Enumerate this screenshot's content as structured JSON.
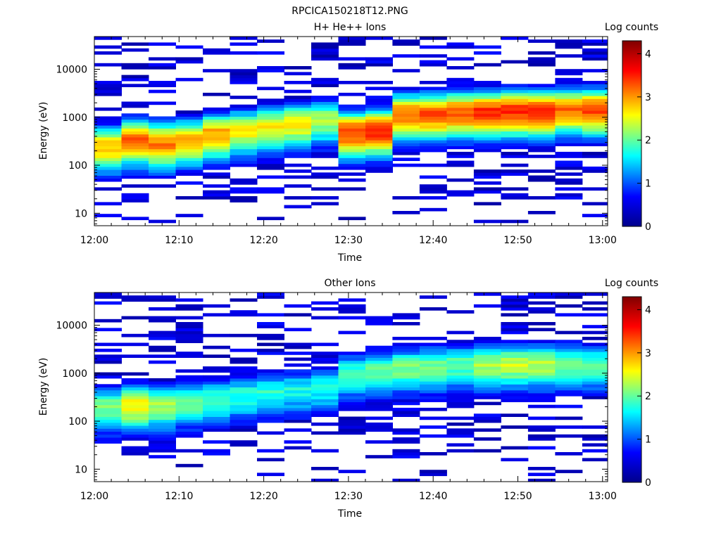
{
  "figure": {
    "title": "RPCICA150218T12.PNG"
  },
  "colorscale": [
    "#00008b",
    "#0000ff",
    "#00ffff",
    "#ffff00",
    "#ff0000",
    "#800000"
  ],
  "chart_data": [
    {
      "type": "heatmap",
      "title": "H+ He++ Ions",
      "xlabel": "Time",
      "ylabel": "Energy (eV)",
      "colorbar_label": "Log counts",
      "x_tick_labels": [
        "12:00",
        "12:10",
        "12:20",
        "12:30",
        "12:40",
        "12:50",
        "13:00"
      ],
      "x_tick_minutes": [
        0,
        10,
        20,
        30,
        40,
        50,
        60
      ],
      "xlim_minutes": [
        0,
        60.6
      ],
      "y_scale": "log",
      "ylim": [
        5.5,
        48000
      ],
      "y_tick_labels": [
        "10",
        "100",
        "1000",
        "10000"
      ],
      "y_tick_values": [
        10,
        100,
        1000,
        10000
      ],
      "colorbar_ticks": [
        "0",
        "1",
        "2",
        "3",
        "4"
      ],
      "colorbar_range": [
        0,
        4.3
      ],
      "time_bins_start_minutes": [
        0,
        3.2,
        6.4,
        9.6,
        12.8,
        16.0,
        19.2,
        22.4,
        25.6,
        28.8,
        32.0,
        35.2,
        38.4,
        41.6,
        44.8,
        48.0,
        51.2,
        54.4,
        57.6
      ],
      "time_bin_width_minutes": 3.2,
      "energy_band_peak_eV": [
        250,
        350,
        300,
        350,
        450,
        550,
        650,
        750,
        900,
        500,
        550,
        1200,
        1200,
        1300,
        1300,
        1400,
        1400,
        1500,
        1500
      ],
      "energy_band_max_log_counts": [
        2.8,
        3.2,
        3.1,
        2.9,
        3.0,
        2.6,
        2.6,
        2.6,
        2.3,
        3.4,
        3.5,
        3.2,
        3.3,
        3.3,
        3.5,
        3.5,
        3.5,
        3.2,
        3.4
      ]
    },
    {
      "type": "heatmap",
      "title": "Other Ions",
      "xlabel": "Time",
      "ylabel": "Energy (eV)",
      "colorbar_label": "Log counts",
      "x_tick_labels": [
        "12:00",
        "12:10",
        "12:20",
        "12:30",
        "12:40",
        "12:50",
        "13:00"
      ],
      "x_tick_minutes": [
        0,
        10,
        20,
        30,
        40,
        50,
        60
      ],
      "xlim_minutes": [
        0,
        60.6
      ],
      "y_scale": "log",
      "ylim": [
        5.5,
        48000
      ],
      "y_tick_labels": [
        "10",
        "100",
        "1000",
        "10000"
      ],
      "y_tick_values": [
        10,
        100,
        1000,
        10000
      ],
      "colorbar_ticks": [
        "0",
        "1",
        "2",
        "3",
        "4"
      ],
      "colorbar_range": [
        0,
        4.3
      ],
      "time_bins_start_minutes": [
        0,
        3.2,
        6.4,
        9.6,
        12.8,
        16.0,
        19.2,
        22.4,
        25.6,
        28.8,
        32.0,
        35.2,
        38.4,
        41.6,
        44.8,
        48.0,
        51.2,
        54.4,
        57.6
      ],
      "time_bin_width_minutes": 3.2,
      "energy_band_peak_eV": [
        200,
        220,
        220,
        250,
        300,
        350,
        400,
        450,
        500,
        1000,
        1100,
        1300,
        1400,
        1500,
        1500,
        1600,
        1600,
        1600,
        1500
      ],
      "energy_band_max_log_counts": [
        2.1,
        2.6,
        2.3,
        2.0,
        1.9,
        1.8,
        1.8,
        1.7,
        1.7,
        1.9,
        2.0,
        2.1,
        2.1,
        2.0,
        2.3,
        2.4,
        2.3,
        2.1,
        2.0
      ]
    }
  ]
}
